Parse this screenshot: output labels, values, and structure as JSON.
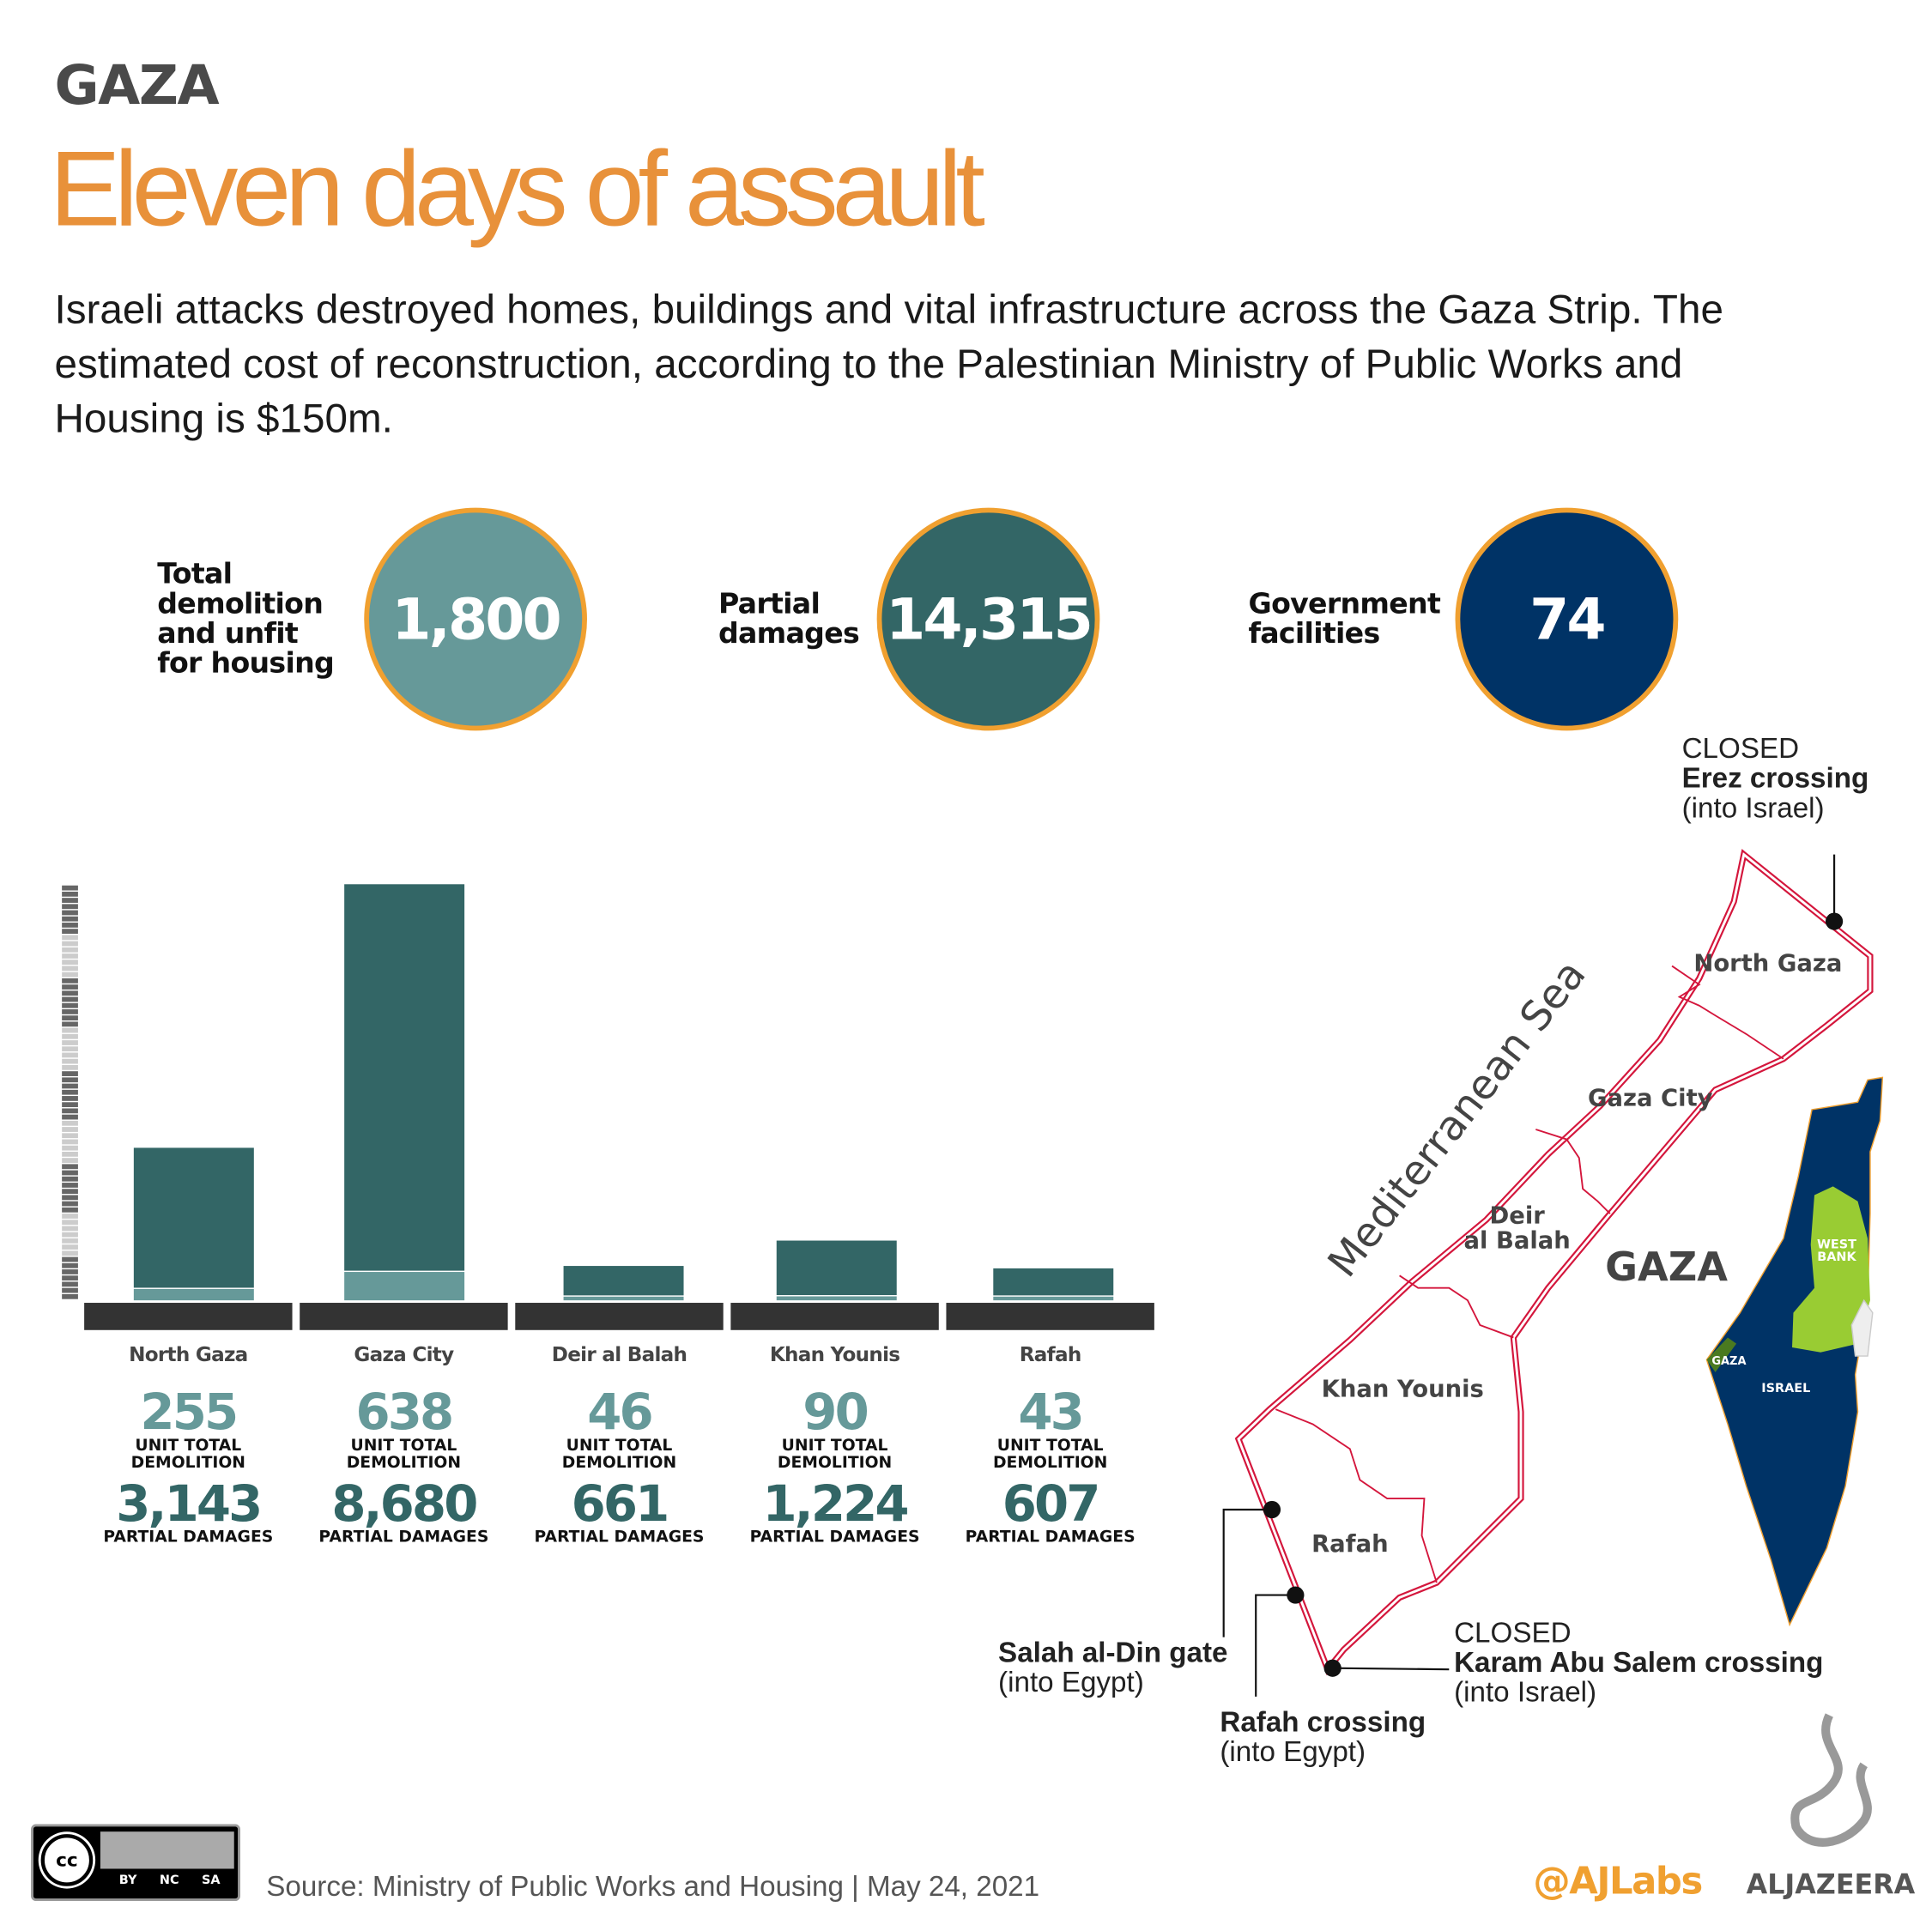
{
  "header": {
    "kicker": "GAZA",
    "title": "Eleven days of assault",
    "subtitle": "Israeli attacks destroyed homes, buildings and vital infrastructure across the Gaza Strip. The estimated cost of reconstruction, according to the Palestinian Ministry of Public Works and Housing is $150m."
  },
  "stats": [
    {
      "label": "Total demolition and unfit for housing",
      "value": "1,800",
      "color": "#669999"
    },
    {
      "label": "Partial damages",
      "value": "14,315",
      "color": "#336666"
    },
    {
      "label": "Government facilities",
      "value": "74",
      "color": "#003366"
    }
  ],
  "colors": {
    "accent": "#e8913a",
    "ring": "#f0a030",
    "demolition": "#669999",
    "partial": "#336666",
    "navy": "#003366",
    "border": "#d4163c",
    "west_bank": "#99cc33"
  },
  "chart_data": {
    "type": "bar",
    "stacked": true,
    "categories": [
      "North Gaza",
      "Gaza City",
      "Deir al Balah",
      "Khan Younis",
      "Rafah"
    ],
    "series": [
      {
        "name": "UNIT TOTAL DEMOLITION",
        "values": [
          255,
          638,
          46,
          90,
          43
        ],
        "color": "#669999"
      },
      {
        "name": "PARTIAL DAMAGES",
        "values": [
          3143,
          8680,
          661,
          1224,
          607
        ],
        "color": "#336666"
      }
    ],
    "value_labels": {
      "demolition": [
        "255",
        "638",
        "46",
        "90",
        "43"
      ],
      "partial": [
        "3,143",
        "8,680",
        "661",
        "1,224",
        "607"
      ]
    },
    "demolition_caption": "UNIT TOTAL DEMOLITION",
    "partial_caption": "PARTIAL DAMAGES",
    "xlabel": "",
    "ylabel": "",
    "grid": false
  },
  "map": {
    "sea_label": "Mediterranean Sea",
    "region_label": "GAZA",
    "districts": [
      "North Gaza",
      "Gaza City",
      "Deir al Balah",
      "Khan Younis",
      "Rafah"
    ],
    "deir_line1": "Deir",
    "deir_line2": "al Balah",
    "inset": {
      "west_bank_1": "WEST",
      "west_bank_2": "BANK",
      "gaza": "GAZA",
      "israel": "ISRAEL"
    },
    "crossings": [
      {
        "status": "CLOSED",
        "name": "Erez crossing",
        "note": "(into Israel)"
      },
      {
        "status": "",
        "name": "Salah al-Din gate",
        "note": "(into Egypt)"
      },
      {
        "status": "",
        "name": "Rafah crossing",
        "note": "(into Egypt)"
      },
      {
        "status": "CLOSED",
        "name": "Karam Abu Salem crossing",
        "note": "(into Israel)"
      }
    ]
  },
  "footer": {
    "license": [
      "BY",
      "NC",
      "SA"
    ],
    "source": "Source: Ministry of Public Works and Housing  |  May 24, 2021",
    "handle": "@AJLabs",
    "brand": "ALJAZEERA"
  }
}
